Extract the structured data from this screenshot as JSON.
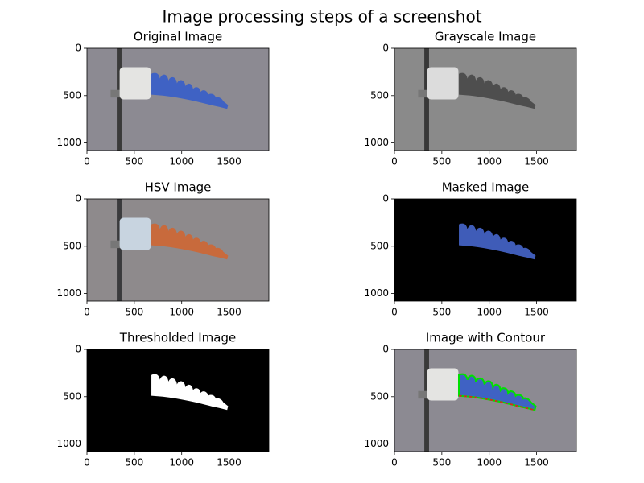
{
  "title": "Image processing steps of a screenshot",
  "chart_data": [
    {
      "type": "image",
      "mode": "rgb",
      "title": "Original Image",
      "xlim": [
        0,
        1920
      ],
      "ylim": [
        1080,
        0
      ],
      "xticks": [
        0,
        500,
        1000,
        1500
      ],
      "yticks": [
        0,
        500,
        1000
      ]
    },
    {
      "type": "image",
      "mode": "gray",
      "title": "Grayscale Image",
      "xlim": [
        0,
        1920
      ],
      "ylim": [
        1080,
        0
      ],
      "xticks": [
        0,
        500,
        1000,
        1500
      ],
      "yticks": [
        0,
        500,
        1000
      ]
    },
    {
      "type": "image",
      "mode": "hsv",
      "title": "HSV Image",
      "xlim": [
        0,
        1920
      ],
      "ylim": [
        1080,
        0
      ],
      "xticks": [
        0,
        500,
        1000,
        1500
      ],
      "yticks": [
        0,
        500,
        1000
      ]
    },
    {
      "type": "image",
      "mode": "masked",
      "title": "Masked Image",
      "xlim": [
        0,
        1920
      ],
      "ylim": [
        1080,
        0
      ],
      "xticks": [
        0,
        500,
        1000,
        1500
      ],
      "yticks": [
        0,
        500,
        1000
      ]
    },
    {
      "type": "image",
      "mode": "binary",
      "title": "Thresholded Image",
      "xlim": [
        0,
        1920
      ],
      "ylim": [
        1080,
        0
      ],
      "xticks": [
        0,
        500,
        1000,
        1500
      ],
      "yticks": [
        0,
        500,
        1000
      ]
    },
    {
      "type": "image",
      "mode": "contour",
      "title": "Image with Contour",
      "xlim": [
        0,
        1920
      ],
      "ylim": [
        1080,
        0
      ],
      "xticks": [
        0,
        500,
        1000,
        1500
      ],
      "yticks": [
        0,
        500,
        1000
      ]
    }
  ]
}
